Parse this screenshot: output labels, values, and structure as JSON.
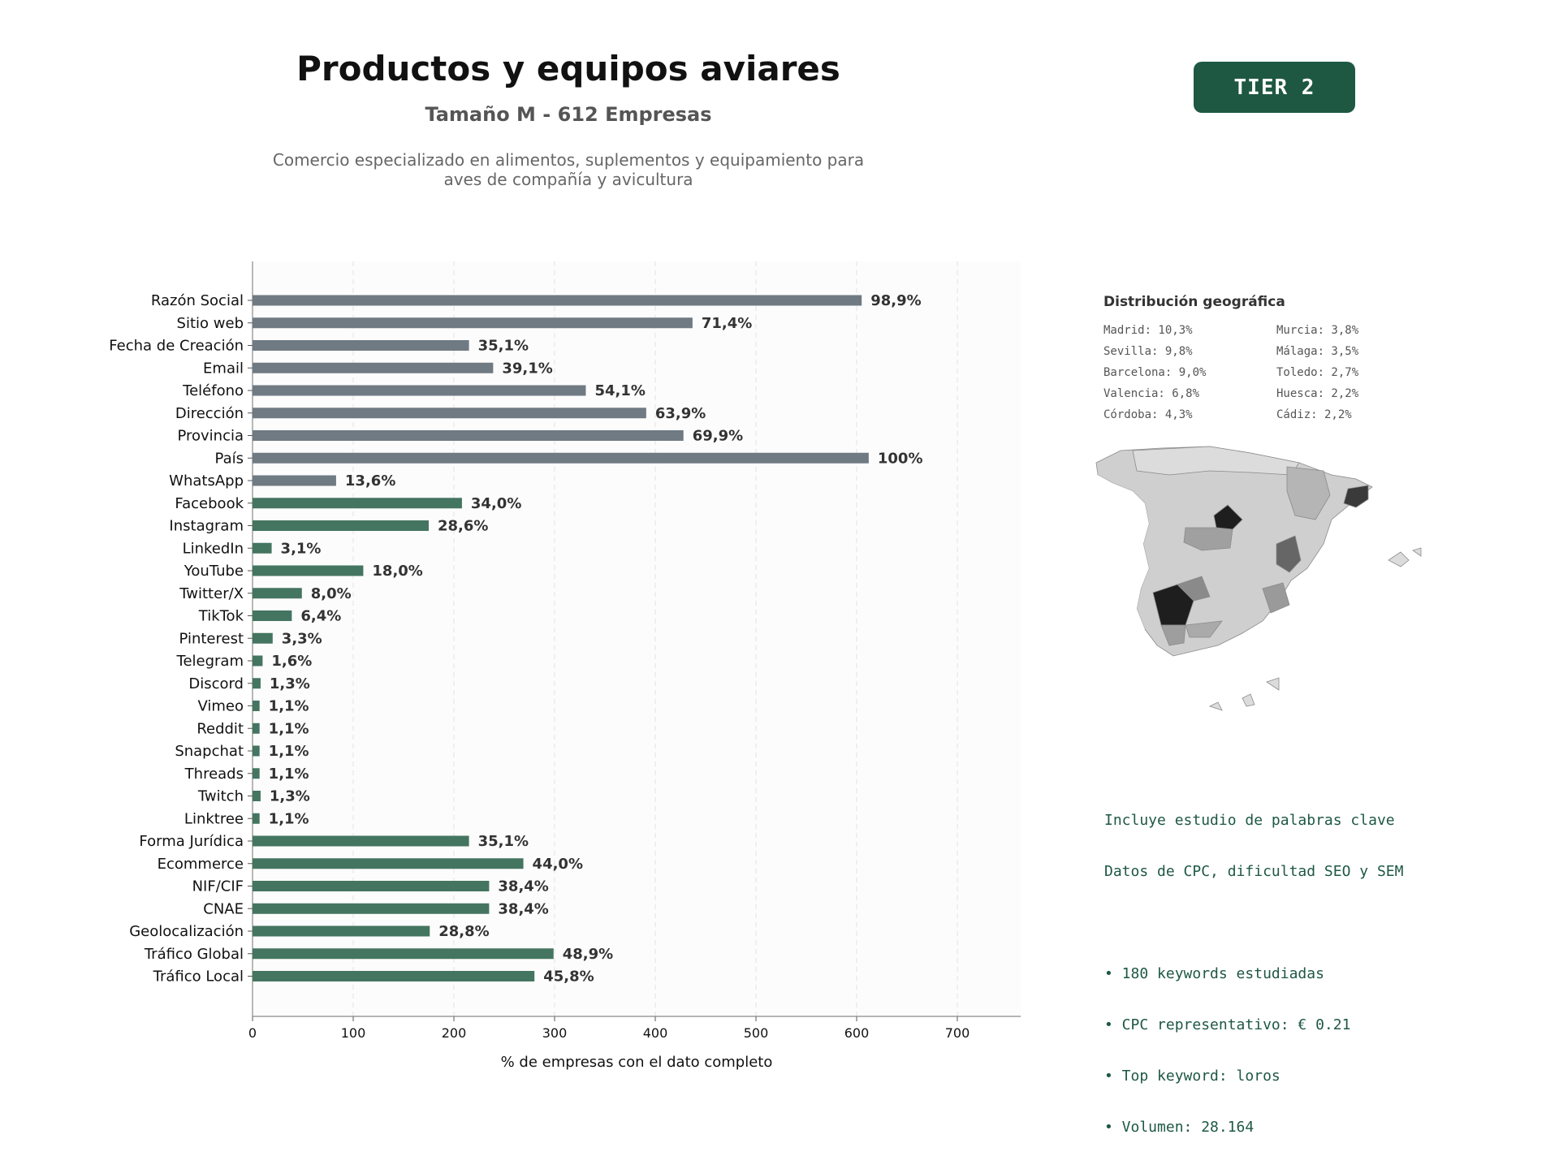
{
  "header": {
    "title": "Productos y equipos aviares",
    "subtitle": "Tamaño M - 612 Empresas",
    "description_line1": "Comercio especializado en alimentos, suplementos y equipamiento para",
    "description_line2": "aves de compañía y avicultura",
    "tier_label": "TIER 2"
  },
  "colors": {
    "gray_bar": "#6f7a83",
    "green_bar": "#447560",
    "tier_bg": "#1e5843",
    "keyword_text": "#1e5843"
  },
  "chart_data": {
    "type": "bar",
    "orientation": "horizontal",
    "xlabel": "% de empresas con el dato completo",
    "xlim": [
      0,
      764
    ],
    "xticks": [
      0,
      100,
      200,
      300,
      400,
      500,
      600,
      700
    ],
    "grid": true,
    "categories": [
      "Razón Social",
      "Sitio web",
      "Fecha de Creación",
      "Email",
      "Teléfono",
      "Dirección",
      "Provincia",
      "País",
      "WhatsApp",
      "Facebook",
      "Instagram",
      "LinkedIn",
      "YouTube",
      "Twitter/X",
      "TikTok",
      "Pinterest",
      "Telegram",
      "Discord",
      "Vimeo",
      "Reddit",
      "Snapchat",
      "Threads",
      "Twitch",
      "Linktree",
      "Forma Jurídica",
      "Ecommerce",
      "NIF/CIF",
      "CNAE",
      "Geolocalización",
      "Tráfico Global",
      "Tráfico Local"
    ],
    "values": [
      605,
      437,
      215,
      239,
      331,
      391,
      428,
      612,
      83,
      208,
      175,
      19,
      110,
      49,
      39,
      20,
      10,
      8,
      7,
      7,
      7,
      7,
      8,
      7,
      215,
      269,
      235,
      235,
      176,
      299,
      280
    ],
    "labels": [
      "98,9%",
      "71,4%",
      "35,1%",
      "39,1%",
      "54,1%",
      "63,9%",
      "69,9%",
      "100%",
      "13,6%",
      "34,0%",
      "28,6%",
      "3,1%",
      "18,0%",
      "8,0%",
      "6,4%",
      "3,3%",
      "1,6%",
      "1,3%",
      "1,1%",
      "1,1%",
      "1,1%",
      "1,1%",
      "1,3%",
      "1,1%",
      "35,1%",
      "44,0%",
      "38,4%",
      "38,4%",
      "28,8%",
      "48,9%",
      "45,8%"
    ],
    "group": [
      "gray",
      "gray",
      "gray",
      "gray",
      "gray",
      "gray",
      "gray",
      "gray",
      "gray",
      "green",
      "green",
      "green",
      "green",
      "green",
      "green",
      "green",
      "green",
      "green",
      "green",
      "green",
      "green",
      "green",
      "green",
      "green",
      "green",
      "green",
      "green",
      "green",
      "green",
      "green",
      "green"
    ]
  },
  "geo": {
    "title": "Distribución geográfica",
    "items": [
      "Madrid: 10,3%",
      "Murcia: 3,8%",
      "Sevilla: 9,8%",
      "Málaga: 3,5%",
      "Barcelona: 9,0%",
      "Toledo: 2,7%",
      "Valencia: 6,8%",
      "Huesca: 2,2%",
      "Córdoba: 4,3%",
      "Cádiz: 2,2%"
    ]
  },
  "keywords": {
    "line1": "Incluye estudio de palabras clave",
    "line2": "Datos de CPC, dificultad SEO y SEM",
    "bullet1": "• 180 keywords estudiadas",
    "bullet2": "• CPC representativo: € 0.21",
    "bullet3": "• Top keyword: loros",
    "bullet4": "• Volumen: 28.164"
  }
}
